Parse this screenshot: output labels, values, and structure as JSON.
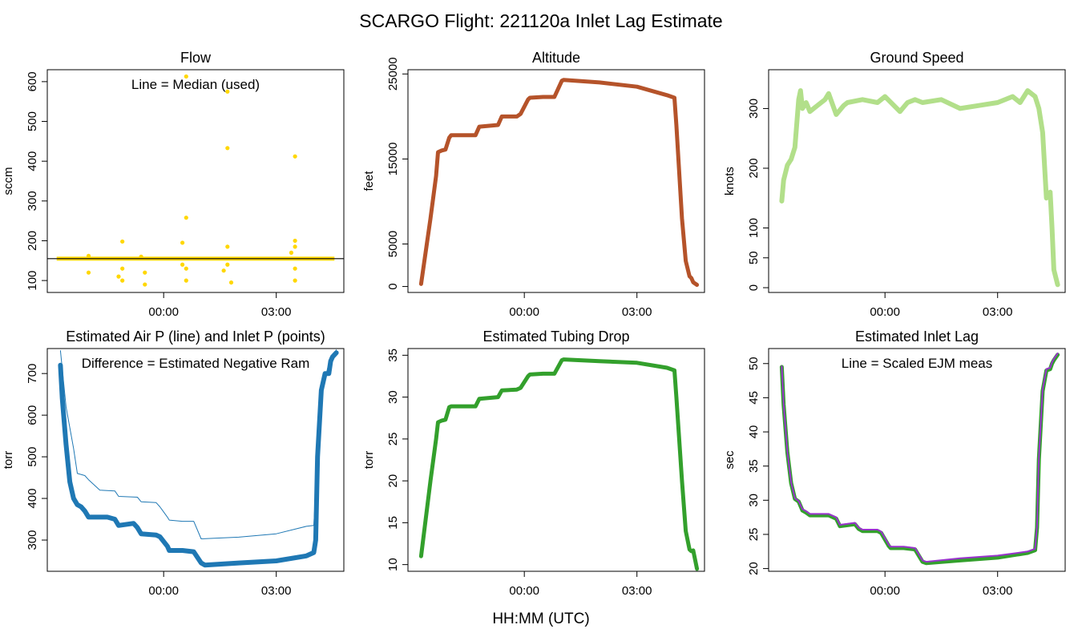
{
  "figure": {
    "title": "SCARGO Flight: 221120a  Inlet Lag Estimate",
    "xlabel": "HH:MM (UTC)"
  },
  "chart_data": [
    {
      "id": "flow",
      "type": "scatter",
      "title": "Flow",
      "ylabel": "sccm",
      "annotation": "Line = Median (used)",
      "xlim": [
        -3.1,
        4.8
      ],
      "ylim": [
        70,
        630
      ],
      "xticks": [
        {
          "v": 0,
          "label": "00:00"
        },
        {
          "v": 3,
          "label": "03:00"
        }
      ],
      "yticks": [
        100,
        200,
        300,
        400,
        500,
        600
      ],
      "color": "#FFD700",
      "hline": {
        "value": 155,
        "color": "#000000"
      },
      "band": {
        "x0": -2.85,
        "x1": 4.55,
        "y0": 150,
        "y1": 160
      },
      "points": [
        [
          -2.0,
          120
        ],
        [
          -2.0,
          162
        ],
        [
          -1.1,
          198
        ],
        [
          -1.1,
          100
        ],
        [
          -1.2,
          110
        ],
        [
          -1.1,
          130
        ],
        [
          -0.5,
          90
        ],
        [
          -0.5,
          120
        ],
        [
          -0.6,
          160
        ],
        [
          0.6,
          613
        ],
        [
          0.6,
          258
        ],
        [
          0.5,
          195
        ],
        [
          0.6,
          100
        ],
        [
          0.6,
          130
        ],
        [
          0.5,
          140
        ],
        [
          1.7,
          575
        ],
        [
          1.7,
          433
        ],
        [
          1.7,
          185
        ],
        [
          1.8,
          95
        ],
        [
          1.6,
          125
        ],
        [
          1.7,
          140
        ],
        [
          3.5,
          412
        ],
        [
          3.5,
          200
        ],
        [
          3.5,
          100
        ],
        [
          3.5,
          130
        ],
        [
          3.5,
          185
        ],
        [
          3.4,
          170
        ]
      ]
    },
    {
      "id": "altitude",
      "type": "line",
      "title": "Altitude",
      "ylabel": "feet",
      "xlim": [
        -3.1,
        4.8
      ],
      "ylim": [
        -700,
        25500
      ],
      "xticks": [
        {
          "v": 0,
          "label": "00:00"
        },
        {
          "v": 3,
          "label": "03:00"
        }
      ],
      "yticks": [
        0,
        5000,
        15000,
        25000
      ],
      "series": [
        {
          "name": "Altitude",
          "color": "#B5532A",
          "width": 5,
          "x": [
            -2.75,
            -2.5,
            -2.35,
            -2.3,
            -2.2,
            -2.1,
            -2.0,
            -1.95,
            -1.3,
            -1.2,
            -0.7,
            -0.6,
            -0.2,
            -0.1,
            0.1,
            0.15,
            0.5,
            0.8,
            1.0,
            1.05,
            2.0,
            3.0,
            3.8,
            4.0,
            4.05,
            4.2,
            4.3,
            4.4,
            4.45,
            4.5,
            4.6
          ],
          "y": [
            300,
            8000,
            13000,
            15800,
            16000,
            16100,
            17500,
            17800,
            17800,
            18800,
            19000,
            20000,
            20000,
            20300,
            22000,
            22200,
            22300,
            22300,
            24200,
            24300,
            24000,
            23500,
            22500,
            22200,
            19000,
            8000,
            3000,
            1200,
            1000,
            500,
            200
          ]
        }
      ]
    },
    {
      "id": "ground-speed",
      "type": "line",
      "title": "Ground Speed",
      "ylabel": "knots",
      "xlim": [
        -3.1,
        4.8
      ],
      "ylim": [
        -8,
        365
      ],
      "xticks": [
        {
          "v": 0,
          "label": "00:00"
        },
        {
          "v": 3,
          "label": "03:00"
        }
      ],
      "yticks": [
        0,
        50,
        100,
        200,
        300
      ],
      "series": [
        {
          "name": "Ground Speed",
          "color": "#B2DF8A",
          "width": 6,
          "x": [
            -2.75,
            -2.7,
            -2.6,
            -2.5,
            -2.4,
            -2.3,
            -2.25,
            -2.2,
            -2.1,
            -2.0,
            -1.8,
            -1.6,
            -1.5,
            -1.3,
            -1.1,
            -1.0,
            -0.6,
            -0.2,
            0.0,
            0.4,
            0.6,
            0.8,
            1.0,
            1.5,
            2.0,
            2.5,
            3.0,
            3.4,
            3.6,
            3.8,
            4.0,
            4.1,
            4.2,
            4.3,
            4.4,
            4.45,
            4.5,
            4.6
          ],
          "y": [
            145,
            180,
            205,
            215,
            235,
            315,
            330,
            300,
            310,
            295,
            305,
            315,
            325,
            290,
            305,
            310,
            315,
            310,
            320,
            295,
            310,
            315,
            310,
            315,
            300,
            305,
            310,
            320,
            310,
            330,
            320,
            300,
            260,
            150,
            160,
            100,
            30,
            5
          ]
        }
      ]
    },
    {
      "id": "air-pressure",
      "type": "line",
      "title": "Estimated Air P (line) and Inlet P (points)",
      "ylabel": "torr",
      "annotation": "Difference = Estimated Negative Ram",
      "xlim": [
        -3.1,
        4.8
      ],
      "ylim": [
        225,
        760
      ],
      "xticks": [
        {
          "v": 0,
          "label": "00:00"
        },
        {
          "v": 3,
          "label": "03:00"
        }
      ],
      "yticks": [
        300,
        400,
        500,
        600,
        700
      ],
      "series": [
        {
          "name": "Air P",
          "color": "#1F78B4",
          "width": 1,
          "x": [
            -2.75,
            -2.6,
            -2.4,
            -2.3,
            -2.1,
            -2.0,
            -1.7,
            -1.3,
            -1.2,
            -0.7,
            -0.6,
            -0.2,
            -0.1,
            0.1,
            0.15,
            0.5,
            0.8,
            1.0,
            2.0,
            3.0,
            3.8,
            4.0,
            4.1,
            4.2,
            4.4,
            4.6
          ],
          "y": [
            755,
            620,
            520,
            460,
            455,
            445,
            420,
            418,
            405,
            403,
            392,
            390,
            380,
            355,
            348,
            345,
            345,
            303,
            307,
            315,
            333,
            335,
            500,
            650,
            725,
            757
          ]
        },
        {
          "name": "Inlet P",
          "color": "#1F78B4",
          "width": 6,
          "x": [
            -2.75,
            -2.7,
            -2.6,
            -2.5,
            -2.4,
            -2.3,
            -2.2,
            -2.1,
            -2.0,
            -1.95,
            -1.5,
            -1.3,
            -1.2,
            -0.8,
            -0.7,
            -0.6,
            -0.2,
            -0.1,
            0.1,
            0.15,
            0.5,
            0.8,
            1.0,
            1.1,
            2.0,
            3.0,
            3.8,
            4.0,
            4.05,
            4.1,
            4.2,
            4.3,
            4.4,
            4.45,
            4.5,
            4.6
          ],
          "y": [
            720,
            640,
            530,
            440,
            400,
            385,
            380,
            370,
            355,
            355,
            355,
            350,
            335,
            340,
            330,
            315,
            312,
            308,
            285,
            275,
            275,
            272,
            245,
            240,
            245,
            250,
            262,
            270,
            300,
            500,
            660,
            700,
            700,
            730,
            740,
            750
          ]
        }
      ]
    },
    {
      "id": "tubing-drop",
      "type": "line",
      "title": "Estimated Tubing Drop",
      "ylabel": "torr",
      "xlim": [
        -3.1,
        4.8
      ],
      "ylim": [
        9.2,
        35.8
      ],
      "xticks": [
        {
          "v": 0,
          "label": "00:00"
        },
        {
          "v": 3,
          "label": "03:00"
        }
      ],
      "yticks": [
        10,
        15,
        20,
        25,
        30,
        35
      ],
      "series": [
        {
          "name": "Tubing Drop",
          "color": "#33A02C",
          "width": 5,
          "x": [
            -2.75,
            -2.5,
            -2.35,
            -2.3,
            -2.2,
            -2.1,
            -2.0,
            -1.95,
            -1.3,
            -1.2,
            -0.7,
            -0.6,
            -0.2,
            -0.1,
            0.1,
            0.15,
            0.5,
            0.8,
            1.0,
            1.05,
            2.0,
            3.0,
            3.8,
            4.0,
            4.05,
            4.2,
            4.3,
            4.4,
            4.45,
            4.5,
            4.6
          ],
          "y": [
            11,
            20,
            25,
            27,
            27.2,
            27.3,
            28.8,
            28.9,
            28.9,
            29.8,
            30,
            30.8,
            30.9,
            31.1,
            32.5,
            32.7,
            32.8,
            32.8,
            34.4,
            34.5,
            34.3,
            34.1,
            33.5,
            33.2,
            30,
            20,
            14,
            11.8,
            11.6,
            11.7,
            9.5
          ]
        }
      ]
    },
    {
      "id": "inlet-lag",
      "type": "line",
      "title": "Estimated Inlet Lag",
      "ylabel": "sec",
      "annotation": "Line = Scaled EJM meas",
      "xlim": [
        -3.1,
        4.8
      ],
      "ylim": [
        19.6,
        52.2
      ],
      "xticks": [
        {
          "v": 0,
          "label": "00:00"
        },
        {
          "v": 3,
          "label": "03:00"
        }
      ],
      "yticks": [
        20,
        25,
        30,
        35,
        40,
        45,
        50
      ],
      "series": [
        {
          "name": "Estimated lag",
          "color": "#33A02C",
          "width": 5,
          "x": [
            -2.75,
            -2.7,
            -2.6,
            -2.5,
            -2.4,
            -2.3,
            -2.2,
            -2.1,
            -2.0,
            -1.95,
            -1.5,
            -1.3,
            -1.2,
            -0.8,
            -0.7,
            -0.6,
            -0.2,
            -0.1,
            0.1,
            0.15,
            0.5,
            0.8,
            1.0,
            1.1,
            2.0,
            3.0,
            3.8,
            4.0,
            4.05,
            4.1,
            4.2,
            4.3,
            4.4,
            4.45,
            4.5,
            4.6
          ],
          "y": [
            49.5,
            44,
            37,
            32.5,
            30.2,
            29.8,
            28.5,
            28.2,
            27.8,
            27.8,
            27.8,
            27.3,
            26.2,
            26.5,
            25.8,
            25.5,
            25.5,
            25.2,
            23.3,
            23,
            23,
            22.8,
            21,
            20.8,
            21.2,
            21.6,
            22.3,
            22.7,
            26,
            36,
            46,
            49,
            49.2,
            50,
            50.5,
            51.3
          ]
        },
        {
          "name": "Scaled EJM meas",
          "color": "#9933CC",
          "width": 2,
          "x": [
            -2.75,
            -2.7,
            -2.6,
            -2.5,
            -2.4,
            -2.3,
            -2.2,
            -2.1,
            -2.0,
            -1.95,
            -1.5,
            -1.3,
            -1.2,
            -0.8,
            -0.7,
            -0.6,
            -0.2,
            -0.1,
            0.1,
            0.15,
            0.5,
            0.8,
            1.0,
            1.1,
            2.0,
            3.0,
            3.8,
            4.0,
            4.05,
            4.1,
            4.2,
            4.3,
            4.4,
            4.45,
            4.5,
            4.6
          ],
          "y": [
            49.6,
            44.1,
            37.1,
            32.6,
            30.3,
            29.9,
            28.7,
            28.4,
            28.0,
            28.0,
            28.0,
            27.5,
            26.4,
            26.7,
            26.0,
            25.7,
            25.7,
            25.4,
            23.5,
            23.2,
            23.2,
            23.0,
            21.2,
            21.0,
            21.5,
            21.9,
            22.5,
            22.9,
            26.2,
            36.2,
            46.2,
            49.2,
            49.4,
            50.2,
            50.7,
            51.5
          ]
        }
      ]
    }
  ]
}
